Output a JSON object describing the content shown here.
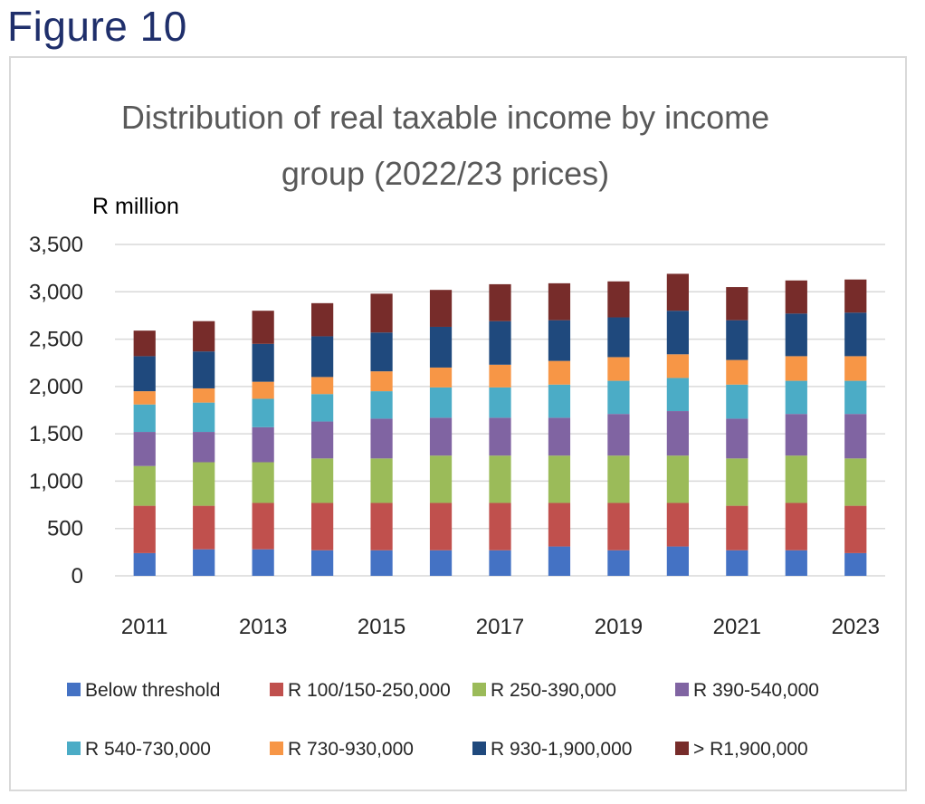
{
  "figure_label": "Figure 10",
  "chart_data": {
    "type": "bar",
    "stacked": true,
    "title": "Distribution of real taxable income by income group (2022/23 prices)",
    "title_lines": [
      "Distribution of real taxable income by income",
      "group (2022/23 prices)"
    ],
    "ylabel": "R million",
    "xlabel": "",
    "ylim": [
      0,
      3500
    ],
    "y_ticks": [
      0,
      500,
      1000,
      1500,
      2000,
      2500,
      3000,
      3500
    ],
    "y_tick_labels": [
      "0",
      "500",
      "1,000",
      "1,500",
      "2,000",
      "2,500",
      "3,000",
      "3,500"
    ],
    "grid": true,
    "legend_position": "bottom",
    "categories": [
      "2011",
      "2012",
      "2013",
      "2014",
      "2015",
      "2016",
      "2017",
      "2018",
      "2019",
      "2020",
      "2021",
      "2022",
      "2023"
    ],
    "x_tick_labels": [
      "2011",
      "",
      "2013",
      "",
      "2015",
      "",
      "2017",
      "",
      "2019",
      "",
      "2021",
      "",
      "2023"
    ],
    "series": [
      {
        "name": "Below threshold",
        "color": "#4472c4",
        "values": [
          240,
          280,
          280,
          270,
          270,
          270,
          270,
          310,
          270,
          310,
          270,
          270,
          240
        ]
      },
      {
        "name": "R 100/150-250,000",
        "color": "#c0504d",
        "values": [
          500,
          460,
          490,
          500,
          500,
          500,
          500,
          460,
          500,
          460,
          470,
          500,
          500
        ]
      },
      {
        "name": "R 250-390,000",
        "color": "#9bbb59",
        "values": [
          420,
          460,
          430,
          470,
          470,
          500,
          500,
          500,
          500,
          500,
          500,
          500,
          500
        ]
      },
      {
        "name": "R 390-540,000",
        "color": "#8064a2",
        "values": [
          360,
          320,
          370,
          390,
          420,
          400,
          400,
          400,
          440,
          470,
          420,
          440,
          470
        ]
      },
      {
        "name": "R 540-730,000",
        "color": "#4bacc6",
        "values": [
          290,
          310,
          300,
          290,
          290,
          320,
          320,
          350,
          350,
          350,
          360,
          350,
          350
        ]
      },
      {
        "name": "R 730-930,000",
        "color": "#f79646",
        "values": [
          140,
          150,
          180,
          180,
          210,
          210,
          240,
          250,
          250,
          250,
          260,
          260,
          260
        ]
      },
      {
        "name": "R 930-1,900,000",
        "color": "#1f497d",
        "values": [
          370,
          390,
          400,
          430,
          410,
          430,
          460,
          430,
          420,
          460,
          420,
          450,
          460
        ]
      },
      {
        "name": "> R1,900,000",
        "color": "#772c2a",
        "values": [
          270,
          320,
          350,
          350,
          410,
          390,
          390,
          390,
          380,
          390,
          350,
          350,
          350
        ]
      }
    ]
  }
}
